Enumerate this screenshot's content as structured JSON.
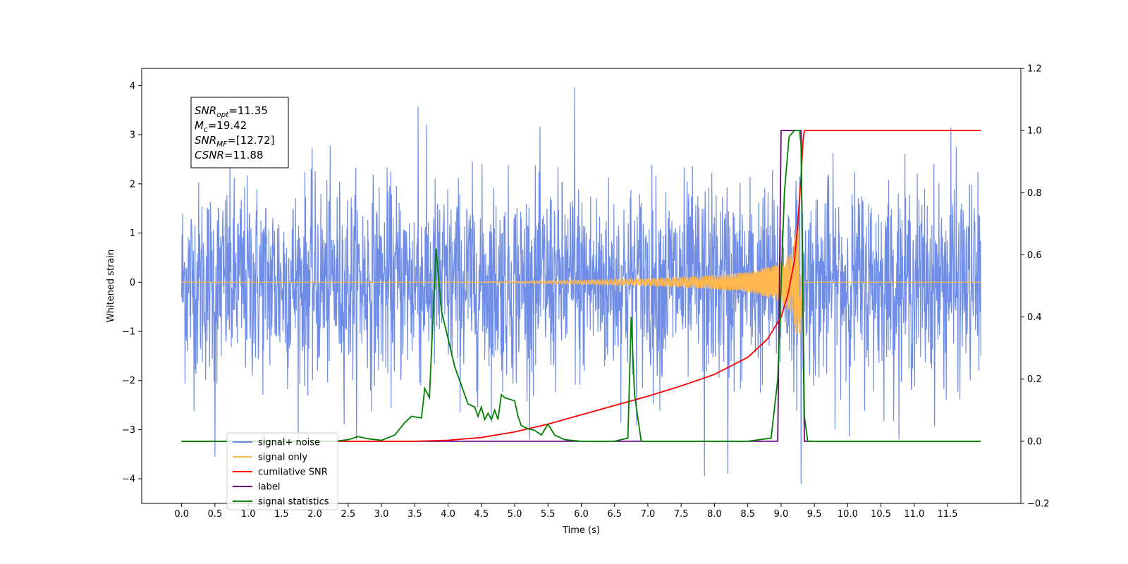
{
  "chart_data": {
    "type": "line",
    "title": "",
    "xlabel": "Time (s)",
    "ylabel_left": "Whitened strain",
    "ylabel_right": "",
    "xlim": [
      -0.6,
      12.6
    ],
    "ylim_left": [
      -4.5,
      4.35
    ],
    "ylim_right": [
      -0.2,
      1.2
    ],
    "x_ticks": [
      "0.0",
      "0.5",
      "1.0",
      "1.5",
      "2.0",
      "2.5",
      "3.0",
      "3.5",
      "4.0",
      "4.5",
      "5.0",
      "5.5",
      "6.0",
      "6.5",
      "7.0",
      "7.5",
      "8.0",
      "8.5",
      "9.0",
      "9.5",
      "10.0",
      "10.5",
      "11.0",
      "11.5"
    ],
    "y_ticks_left": [
      "4",
      "3",
      "2",
      "1",
      "0",
      "−1",
      "−2",
      "−3",
      "−4"
    ],
    "y_ticks_right": [
      "1.2",
      "1.0",
      "0.8",
      "0.6",
      "0.4",
      "0.2",
      "0.0",
      "−0.2"
    ],
    "grid": false,
    "legend": {
      "placement": "lower-left",
      "entries": [
        {
          "label": "signal+ noise",
          "color": "#6f8de6"
        },
        {
          "label": "signal only",
          "color": "#ffb84d"
        },
        {
          "label": "cumilative SNR",
          "color": "#ff0000"
        },
        {
          "label": "label",
          "color": "#6a0080"
        },
        {
          "label": "signal statistics",
          "color": "#008000"
        }
      ]
    },
    "info_box": {
      "lines": [
        {
          "name": "SNR",
          "sub": "opt",
          "value": "=11.35"
        },
        {
          "name": "M",
          "sub": "c",
          "value": "=19.42"
        },
        {
          "name": "SNR",
          "sub": "MF",
          "value": "=[12.72]"
        },
        {
          "name": "CSNR",
          "sub": "",
          "value": "=11.88"
        }
      ]
    },
    "series": [
      {
        "name": "signal+ noise",
        "axis": "left",
        "color": "#6f8de6",
        "x_range": [
          0.0,
          12.0
        ],
        "typical_amplitude": 1.0,
        "peak_range": [
          -4.1,
          3.97
        ],
        "description_points": [
          [
            0.5,
            -3.55
          ],
          [
            3.55,
            3.57
          ],
          [
            5.9,
            3.97
          ],
          [
            7.85,
            -3.95
          ],
          [
            8.2,
            -3.9
          ],
          [
            9.3,
            -4.1
          ],
          [
            11.55,
            3.15
          ]
        ]
      },
      {
        "name": "signal only",
        "axis": "left",
        "color": "#ffb84d",
        "x_range": [
          0.0,
          12.0
        ],
        "chirp_start": 4.0,
        "merger_time": 9.3,
        "peak_amplitude": 1.2
      },
      {
        "name": "cumilative SNR",
        "axis": "right",
        "color": "#ff0000",
        "x": [
          0.0,
          3.0,
          3.5,
          4.0,
          4.5,
          5.0,
          5.5,
          6.0,
          6.5,
          7.0,
          7.5,
          8.0,
          8.5,
          8.8,
          9.0,
          9.1,
          9.2,
          9.25,
          9.3,
          9.33,
          9.35,
          12.0
        ],
        "y": [
          0.0,
          0.0,
          0.0,
          0.003,
          0.012,
          0.03,
          0.055,
          0.085,
          0.115,
          0.145,
          0.178,
          0.215,
          0.27,
          0.33,
          0.4,
          0.47,
          0.58,
          0.7,
          0.85,
          0.97,
          1.0,
          1.0
        ]
      },
      {
        "name": "label",
        "axis": "right",
        "color": "#6a0080",
        "x": [
          0.0,
          8.95,
          9.0,
          9.3,
          9.35,
          12.0
        ],
        "y": [
          0.0,
          0.0,
          1.0,
          1.0,
          0.0,
          0.0
        ]
      },
      {
        "name": "signal statistics",
        "axis": "right",
        "color": "#008000",
        "x": [
          0.0,
          2.3,
          2.5,
          2.65,
          2.8,
          3.0,
          3.2,
          3.35,
          3.45,
          3.6,
          3.65,
          3.72,
          3.82,
          3.9,
          4.0,
          4.1,
          4.2,
          4.3,
          4.4,
          4.45,
          4.5,
          4.55,
          4.6,
          4.65,
          4.7,
          4.75,
          4.8,
          4.85,
          5.0,
          5.05,
          5.1,
          5.2,
          5.3,
          5.4,
          5.5,
          5.6,
          5.75,
          6.0,
          6.5,
          6.7,
          6.75,
          6.8,
          6.9,
          7.0,
          8.5,
          8.85,
          8.95,
          9.05,
          9.12,
          9.2,
          9.28,
          9.3,
          9.35,
          9.4,
          12.0
        ],
        "y": [
          0.0,
          0.0,
          0.005,
          0.015,
          0.008,
          0.003,
          0.02,
          0.06,
          0.08,
          0.075,
          0.17,
          0.14,
          0.62,
          0.42,
          0.33,
          0.24,
          0.18,
          0.12,
          0.11,
          0.08,
          0.11,
          0.07,
          0.09,
          0.07,
          0.1,
          0.07,
          0.15,
          0.14,
          0.13,
          0.08,
          0.05,
          0.04,
          0.035,
          0.02,
          0.055,
          0.02,
          0.005,
          0.0,
          0.0,
          0.01,
          0.4,
          0.15,
          0.0,
          0.0,
          0.0,
          0.01,
          0.2,
          0.8,
          0.98,
          1.0,
          1.0,
          0.95,
          0.08,
          0.0,
          0.0
        ]
      }
    ]
  }
}
